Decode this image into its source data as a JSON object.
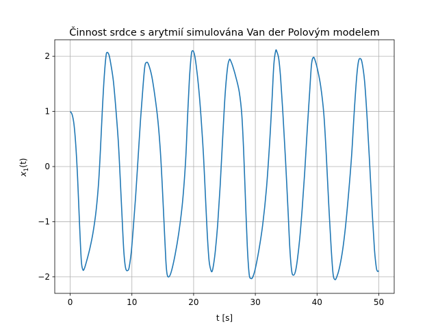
{
  "chart_data": {
    "type": "line",
    "title": "Činnost srdce s arytmií simulována Van der Polovým modelem",
    "xlabel": "t [s]",
    "ylabel_main": "x",
    "ylabel_sub": "1",
    "ylabel_arg": "(t)",
    "xlim": [
      -2.5,
      52.5
    ],
    "ylim": [
      -2.3,
      2.3
    ],
    "grid": true,
    "x_ticks": [
      0,
      10,
      20,
      30,
      40,
      50
    ],
    "x_tick_labels": [
      "0",
      "10",
      "20",
      "30",
      "40",
      "50"
    ],
    "y_ticks": [
      -2,
      -1,
      0,
      1,
      2
    ],
    "y_tick_labels": [
      "−2",
      "−1",
      "0",
      "1",
      "2"
    ],
    "series": [
      {
        "color": "#1f77b4",
        "x": [
          0,
          0.3,
          0.6,
          0.9,
          1.2,
          1.5,
          1.8,
          2.05,
          2.3,
          2.7,
          3.2,
          3.7,
          4.2,
          4.6,
          4.9,
          5.2,
          5.5,
          5.8,
          6.0,
          6.3,
          6.6,
          7.0,
          7.4,
          7.8,
          8.1,
          8.4,
          8.7,
          9.0,
          9.4,
          9.6,
          9.9,
          10.2,
          10.6,
          11.0,
          11.4,
          11.8,
          12.1,
          12.4,
          12.7,
          13.2,
          13.7,
          14.2,
          14.6,
          14.9,
          15.2,
          15.5,
          15.7,
          16.0,
          16.4,
          17.0,
          17.6,
          18.2,
          18.7,
          19.0,
          19.3,
          19.6,
          19.8,
          20.1,
          20.4,
          20.8,
          21.2,
          21.6,
          21.9,
          22.2,
          22.5,
          22.8,
          23.0,
          23.2,
          23.5,
          23.9,
          24.3,
          24.7,
          25.1,
          25.5,
          25.8,
          26.0,
          26.4,
          26.9,
          27.4,
          27.8,
          28.1,
          28.4,
          28.7,
          29.0,
          29.3,
          29.6,
          30.0,
          30.6,
          31.2,
          31.8,
          32.3,
          32.7,
          33.0,
          33.3,
          33.5,
          33.8,
          34.1,
          34.5,
          34.9,
          35.3,
          35.6,
          35.9,
          36.2,
          36.5,
          36.8,
          37.2,
          37.6,
          38.0,
          38.4,
          38.8,
          39.1,
          39.4,
          39.7,
          40.1,
          40.6,
          41.1,
          41.5,
          41.9,
          42.3,
          42.6,
          42.9,
          43.2,
          43.6,
          44.1,
          44.6,
          45.1,
          45.6,
          46.0,
          46.4,
          46.7,
          47.0,
          47.3,
          47.7,
          48.1,
          48.5,
          48.9,
          49.3,
          49.6,
          49.8,
          50.0
        ],
        "y": [
          1.0,
          0.95,
          0.78,
          0.4,
          -0.2,
          -1.0,
          -1.7,
          -1.87,
          -1.85,
          -1.7,
          -1.48,
          -1.2,
          -0.8,
          -0.3,
          0.3,
          1.0,
          1.6,
          2.0,
          2.07,
          2.02,
          1.85,
          1.55,
          1.05,
          0.45,
          -0.2,
          -0.9,
          -1.55,
          -1.85,
          -1.88,
          -1.8,
          -1.55,
          -1.15,
          -0.55,
          0.15,
          0.85,
          1.45,
          1.82,
          1.89,
          1.85,
          1.65,
          1.3,
          0.85,
          0.3,
          -0.3,
          -1.0,
          -1.7,
          -1.95,
          -2.0,
          -1.9,
          -1.6,
          -1.2,
          -0.65,
          0.1,
          0.85,
          1.55,
          2.0,
          2.1,
          2.05,
          1.85,
          1.45,
          0.9,
          0.2,
          -0.5,
          -1.2,
          -1.7,
          -1.88,
          -1.9,
          -1.8,
          -1.55,
          -1.05,
          -0.35,
          0.5,
          1.3,
          1.8,
          1.94,
          1.92,
          1.8,
          1.6,
          1.35,
          0.95,
          0.3,
          -0.6,
          -1.45,
          -1.95,
          -2.03,
          -2.0,
          -1.85,
          -1.5,
          -1.05,
          -0.4,
          0.4,
          1.2,
          1.85,
          2.1,
          2.08,
          1.95,
          1.6,
          0.9,
          0.1,
          -0.8,
          -1.5,
          -1.9,
          -1.97,
          -1.9,
          -1.7,
          -1.3,
          -0.75,
          -0.1,
          0.65,
          1.35,
          1.85,
          1.98,
          1.92,
          1.75,
          1.45,
          0.95,
          0.2,
          -0.7,
          -1.5,
          -1.95,
          -2.05,
          -2.0,
          -1.85,
          -1.55,
          -1.1,
          -0.5,
          0.2,
          0.95,
          1.6,
          1.9,
          1.96,
          1.88,
          1.55,
          0.9,
          0.1,
          -0.75,
          -1.5,
          -1.83,
          -1.9,
          -1.89
        ]
      }
    ]
  }
}
